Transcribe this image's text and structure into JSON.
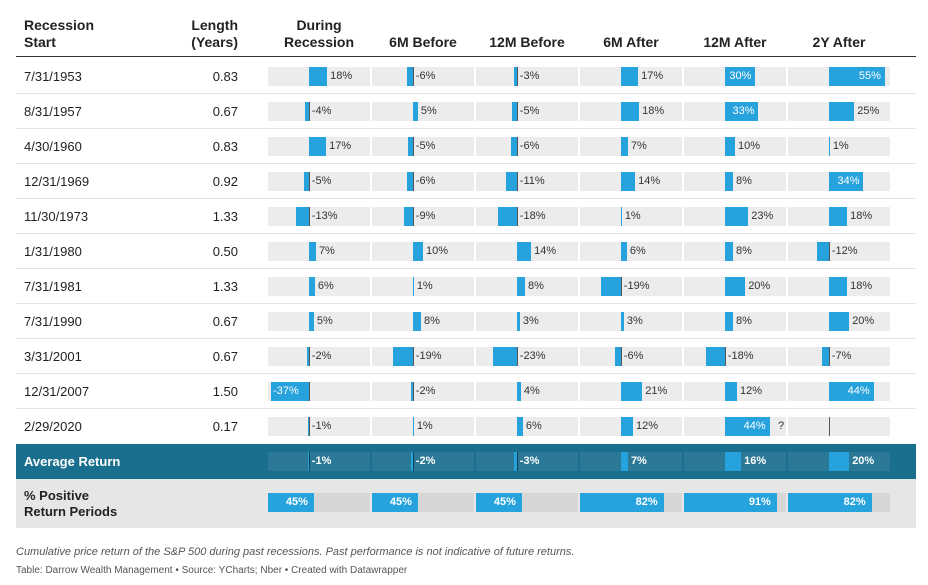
{
  "headers": {
    "start": [
      "Recession",
      "Start"
    ],
    "length": [
      "Length",
      "(Years)"
    ],
    "cols": [
      [
        "During",
        "Recession"
      ],
      [
        "6M Before"
      ],
      [
        "12M Before"
      ],
      [
        "6M After"
      ],
      [
        "12M After"
      ],
      [
        "2Y After"
      ]
    ]
  },
  "chart_data": {
    "type": "table",
    "columns": [
      "Recession Start",
      "Length (Years)",
      "During Recession",
      "6M Before",
      "12M Before",
      "6M After",
      "12M After",
      "2Y After"
    ],
    "rows": [
      {
        "start": "7/31/1953",
        "length": "0.83",
        "values": [
          18,
          -6,
          -3,
          17,
          30,
          55
        ],
        "labels": [
          "18%",
          "-6%",
          "-3%",
          "17%",
          "30%",
          "55%"
        ]
      },
      {
        "start": "8/31/1957",
        "length": "0.67",
        "values": [
          -4,
          5,
          -5,
          18,
          33,
          25
        ],
        "labels": [
          "-4%",
          "5%",
          "-5%",
          "18%",
          "33%",
          "25%"
        ]
      },
      {
        "start": "4/30/1960",
        "length": "0.83",
        "values": [
          17,
          -5,
          -6,
          7,
          10,
          1
        ],
        "labels": [
          "17%",
          "-5%",
          "-6%",
          "7%",
          "10%",
          "1%"
        ]
      },
      {
        "start": "12/31/1969",
        "length": "0.92",
        "values": [
          -5,
          -6,
          -11,
          14,
          8,
          34
        ],
        "labels": [
          "-5%",
          "-6%",
          "-11%",
          "14%",
          "8%",
          "34%"
        ]
      },
      {
        "start": "11/30/1973",
        "length": "1.33",
        "values": [
          -13,
          -9,
          -18,
          1,
          23,
          18
        ],
        "labels": [
          "-13%",
          "-9%",
          "-18%",
          "1%",
          "23%",
          "18%"
        ]
      },
      {
        "start": "1/31/1980",
        "length": "0.50",
        "values": [
          7,
          10,
          14,
          6,
          8,
          -12
        ],
        "labels": [
          "7%",
          "10%",
          "14%",
          "6%",
          "8%",
          "-12%"
        ]
      },
      {
        "start": "7/31/1981",
        "length": "1.33",
        "values": [
          6,
          1,
          8,
          -19,
          20,
          18
        ],
        "labels": [
          "6%",
          "1%",
          "8%",
          "-19%",
          "20%",
          "18%"
        ]
      },
      {
        "start": "7/31/1990",
        "length": "0.67",
        "values": [
          5,
          8,
          3,
          3,
          8,
          20
        ],
        "labels": [
          "5%",
          "8%",
          "3%",
          "3%",
          "8%",
          "20%"
        ]
      },
      {
        "start": "3/31/2001",
        "length": "0.67",
        "values": [
          -2,
          -19,
          -23,
          -6,
          -18,
          -7
        ],
        "labels": [
          "-2%",
          "-19%",
          "-23%",
          "-6%",
          "-18%",
          "-7%"
        ]
      },
      {
        "start": "12/31/2007",
        "length": "1.50",
        "values": [
          -37,
          -2,
          4,
          21,
          12,
          44
        ],
        "labels": [
          "-37%",
          "-2%",
          "4%",
          "21%",
          "12%",
          "44%"
        ]
      },
      {
        "start": "2/29/2020",
        "length": "0.17",
        "values": [
          -1,
          1,
          6,
          12,
          44,
          null
        ],
        "labels": [
          "-1%",
          "1%",
          "6%",
          "12%",
          "44%",
          "?"
        ]
      }
    ],
    "average": {
      "label": "Average Return",
      "values": [
        -1,
        -2,
        -3,
        7,
        16,
        20
      ],
      "labels": [
        "-1%",
        "-2%",
        "-3%",
        "7%",
        "16%",
        "20%"
      ]
    },
    "positive": {
      "label": [
        "% Positive",
        "Return Periods"
      ],
      "values": [
        45,
        45,
        45,
        82,
        91,
        82
      ],
      "labels": [
        "45%",
        "45%",
        "45%",
        "82%",
        "91%",
        "82%"
      ]
    },
    "bar_scale": {
      "min": -40,
      "max": 60
    }
  },
  "footer": {
    "note": "Cumulative price return of the S&P 500 during past recessions. Past performance is not indicative of future returns.",
    "source": "Table: Darrow Wealth Management • Source: YCharts; Nber • Created with Datawrapper"
  },
  "colors": {
    "bar": "#26a2dc",
    "track": "#ececec",
    "average_band": "#1a6e8e",
    "positive_band": "#e6e6e6"
  }
}
